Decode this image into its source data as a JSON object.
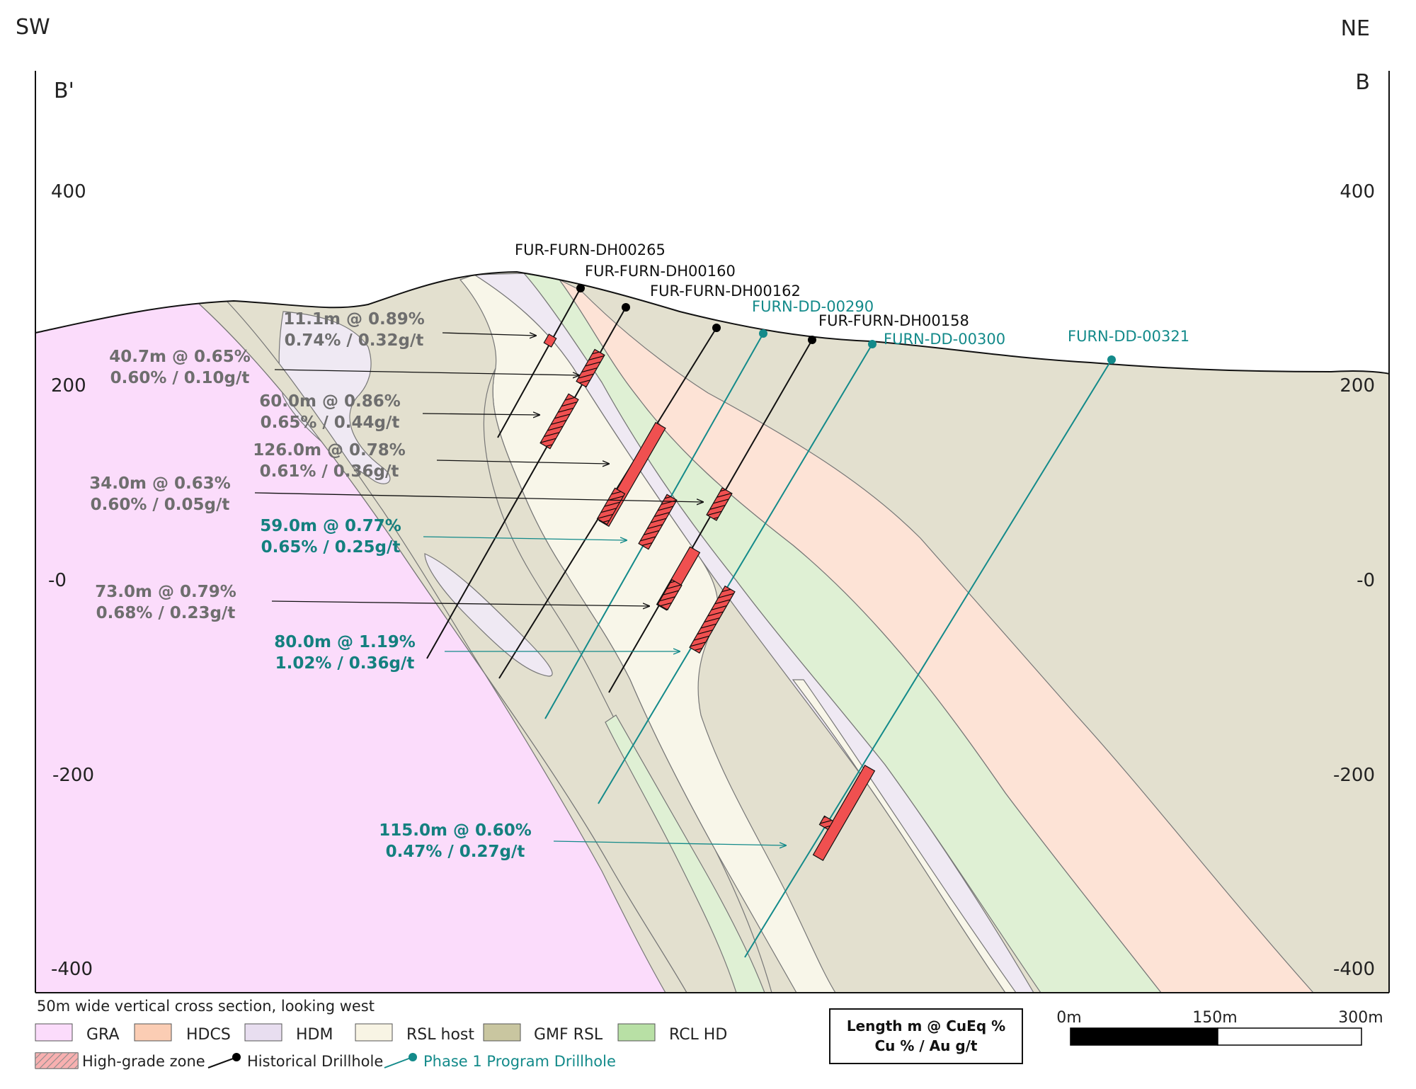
{
  "orientation": {
    "left": "SW",
    "right": "NE"
  },
  "section_ends": {
    "left": "B'",
    "right": "B"
  },
  "elevation_labels": [
    "400",
    "200",
    "-0",
    "-200",
    "-400"
  ],
  "drillholes": [
    {
      "id": "FUR-FURN-DH00265",
      "type": "historical"
    },
    {
      "id": "FUR-FURN-DH00160",
      "type": "historical"
    },
    {
      "id": "FUR-FURN-DH00162",
      "type": "historical"
    },
    {
      "id": "FURN-DD-00290",
      "type": "phase1"
    },
    {
      "id": "FUR-FURN-DH00158",
      "type": "historical"
    },
    {
      "id": "FURN-DD-00300",
      "type": "phase1"
    },
    {
      "id": "FURN-DD-00321",
      "type": "phase1"
    }
  ],
  "intercepts": [
    {
      "line1": "11.1m @ 0.89%",
      "line2": "0.74% / 0.32g/t",
      "type": "historical"
    },
    {
      "line1": "40.7m @ 0.65%",
      "line2": "0.60% / 0.10g/t",
      "type": "historical"
    },
    {
      "line1": "60.0m @ 0.86%",
      "line2": "0.65% / 0.44g/t",
      "type": "historical"
    },
    {
      "line1": "126.0m @ 0.78%",
      "line2": "0.61% / 0.36g/t",
      "type": "historical"
    },
    {
      "line1": "34.0m @ 0.63%",
      "line2": "0.60% / 0.05g/t",
      "type": "historical"
    },
    {
      "line1": "59.0m @ 0.77%",
      "line2": "0.65% / 0.25g/t",
      "type": "phase1"
    },
    {
      "line1": "73.0m @ 0.79%",
      "line2": "0.68% / 0.23g/t",
      "type": "historical"
    },
    {
      "line1": "80.0m @ 1.19%",
      "line2": "1.02% / 0.36g/t",
      "type": "phase1"
    },
    {
      "line1": "115.0m @ 0.60%",
      "line2": "0.47% / 0.27g/t",
      "type": "phase1"
    }
  ],
  "note": "50m wide vertical cross section, looking west",
  "legend": {
    "units": [
      {
        "label": "GRA",
        "color": "#fbdcfb"
      },
      {
        "label": "HDCS",
        "color": "#fbcdb4"
      },
      {
        "label": "HDM",
        "color": "#e8def0"
      },
      {
        "label": "RSL host",
        "color": "#f8f4e4"
      },
      {
        "label": "GMF RSL",
        "color": "#c9c6a0"
      },
      {
        "label": "RCL HD",
        "color": "#b8e0a5"
      }
    ],
    "symbols": {
      "high_grade": "High-grade zone",
      "historical": "Historical Drillhole",
      "phase1": "Phase 1 Program Drillhole"
    }
  },
  "key_box": {
    "line1": "Length m @ CuEq %",
    "line2": "Cu % / Au g/t"
  },
  "scale_bar": {
    "labels": [
      "0m",
      "150m",
      "300m"
    ]
  },
  "colors": {
    "background_host": "#e3e0cf",
    "gra": "#fbdcfb",
    "hdcs": "#fde3d6",
    "hdm": "#efe9f3",
    "rsl_host": "#f8f6e9",
    "rcl_hd": "#dff0d4",
    "intercept": "#f05050",
    "historical": "#000000",
    "phase1": "#138a8a"
  }
}
